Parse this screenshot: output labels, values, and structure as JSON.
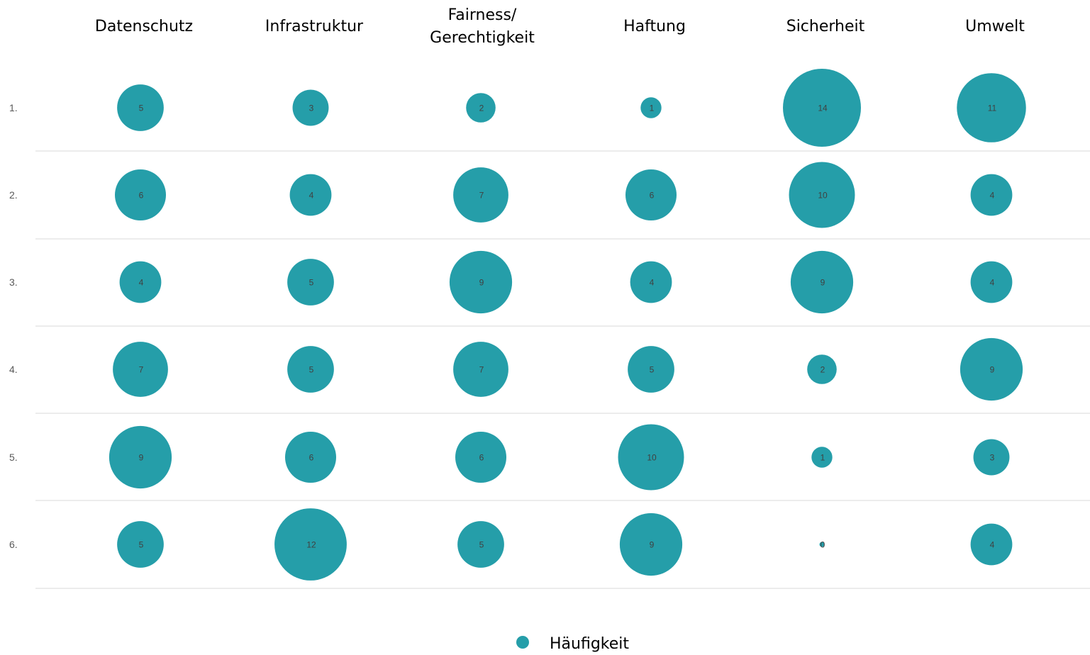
{
  "chart_data": {
    "type": "bubble-matrix",
    "columns": [
      [
        "Datenschutz"
      ],
      [
        "Infrastruktur"
      ],
      [
        "Fairness/",
        "Gerechtigkeit"
      ],
      [
        "Haftung"
      ],
      [
        "Sicherheit"
      ],
      [
        "Umwelt"
      ]
    ],
    "rows": [
      "1.",
      "2.",
      "3.",
      "4.",
      "5.",
      "6."
    ],
    "values": [
      [
        5,
        3,
        2,
        1,
        14,
        11
      ],
      [
        6,
        4,
        7,
        6,
        10,
        4
      ],
      [
        4,
        5,
        9,
        4,
        9,
        4
      ],
      [
        7,
        5,
        7,
        5,
        2,
        9
      ],
      [
        9,
        6,
        6,
        10,
        1,
        3
      ],
      [
        5,
        12,
        5,
        9,
        0,
        4
      ]
    ],
    "series": [
      {
        "name": "Häufigkeit",
        "color": "#259ea9"
      }
    ],
    "legend_position": "bottom-center",
    "grid": "horizontal"
  }
}
